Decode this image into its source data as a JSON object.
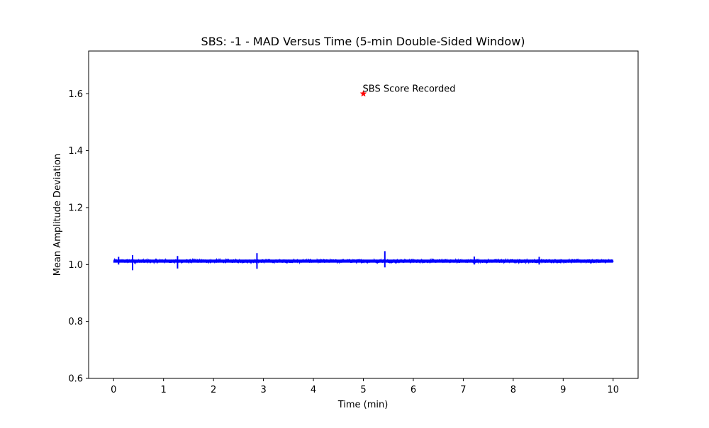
{
  "chart_data": {
    "type": "line",
    "title": "SBS: -1 - MAD Versus Time (5-min Double-Sided Window)",
    "xlabel": "Time (min)",
    "ylabel": "Mean Amplitude Deviation",
    "xlim": [
      -0.5,
      10.5
    ],
    "ylim": [
      0.6,
      1.75
    ],
    "x_ticks": [
      0,
      1,
      2,
      3,
      4,
      5,
      6,
      7,
      8,
      9,
      10
    ],
    "x_tick_labels": [
      "0",
      "1",
      "2",
      "3",
      "4",
      "5",
      "6",
      "7",
      "8",
      "9",
      "10"
    ],
    "y_ticks": [
      0.6,
      0.8,
      1.0,
      1.2,
      1.4,
      1.6
    ],
    "y_tick_labels": [
      "0.6",
      "0.8",
      "1.0",
      "1.2",
      "1.4",
      "1.6"
    ],
    "grid": false,
    "series": [
      {
        "color": "#0000ff",
        "x_range": [
          0,
          10
        ],
        "baseline": 1.012,
        "noise_amplitude": 0.006,
        "spikes": [
          {
            "x": 0.1,
            "min": 1.0,
            "max": 1.027
          },
          {
            "x": 0.38,
            "min": 0.98,
            "max": 1.033
          },
          {
            "x": 1.28,
            "min": 0.986,
            "max": 1.03
          },
          {
            "x": 2.87,
            "min": 0.985,
            "max": 1.04
          },
          {
            "x": 5.43,
            "min": 0.99,
            "max": 1.047
          },
          {
            "x": 7.22,
            "min": 1.0,
            "max": 1.028
          },
          {
            "x": 8.52,
            "min": 1.0,
            "max": 1.027
          }
        ]
      }
    ],
    "annotations": [
      {
        "x": 5.0,
        "y": 1.6,
        "marker": "star",
        "color": "#ff0000",
        "text": "SBS Score Recorded"
      }
    ]
  }
}
